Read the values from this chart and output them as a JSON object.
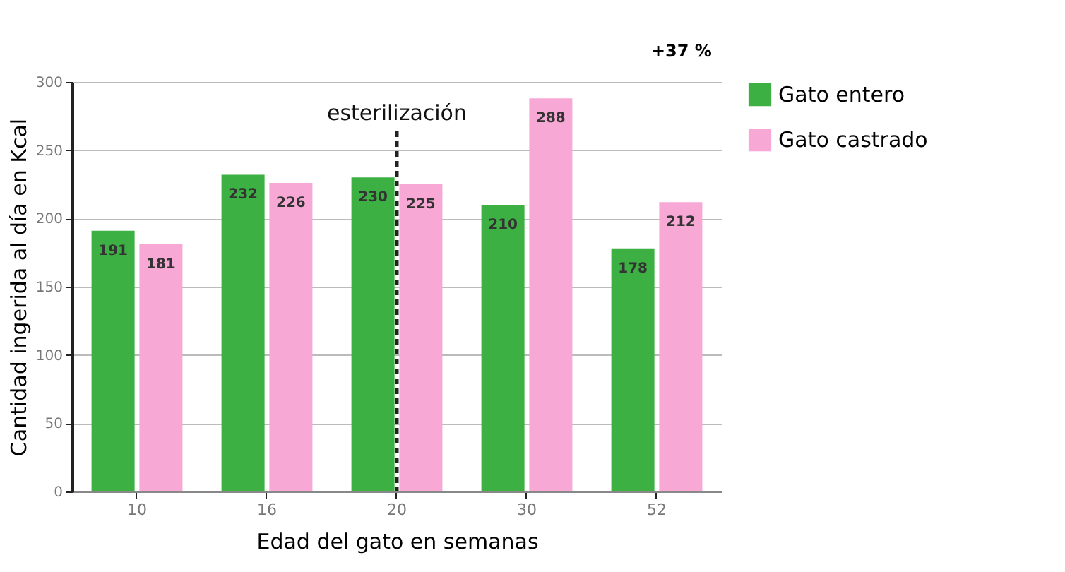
{
  "chart_data": {
    "type": "bar",
    "xlabel": "Edad del gato en semanas",
    "ylabel": "Cantidad ingerida al día en Kcal",
    "categories": [
      "10",
      "16",
      "20",
      "30",
      "52"
    ],
    "series": [
      {
        "name": "Gato entero",
        "color": "#3cb043",
        "values": [
          191,
          232,
          230,
          210,
          178
        ]
      },
      {
        "name": "Gato castrado",
        "color": "#f7a8d4",
        "values": [
          181,
          226,
          225,
          288,
          212
        ]
      }
    ],
    "ylim": [
      0,
      300
    ],
    "yticks": [
      0,
      50,
      100,
      150,
      200,
      250,
      300
    ],
    "grid": "y",
    "legend": "top right",
    "data_labels": true,
    "ref_lines": [
      {
        "axis": "x",
        "value": "20",
        "label": "esterilización",
        "line_style": "dashed",
        "color": "#222222"
      }
    ],
    "annotations": [
      "+37 %"
    ]
  }
}
